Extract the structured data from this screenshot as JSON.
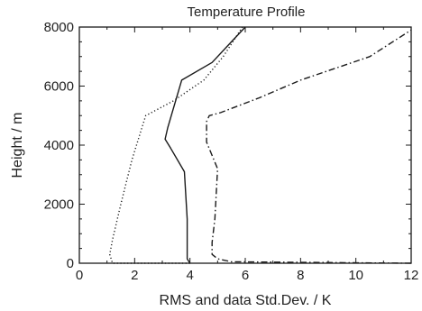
{
  "chart_data": {
    "type": "line",
    "title": "Temperature Profile",
    "xlabel": "RMS and data Std.Dev. / K",
    "ylabel": "Height / m",
    "xlim": [
      0,
      12
    ],
    "ylim": [
      0,
      8000
    ],
    "x_ticks": [
      0,
      2,
      4,
      6,
      8,
      10,
      12
    ],
    "y_ticks": [
      0,
      2000,
      4000,
      6000,
      8000
    ],
    "grid": false,
    "legend": "none",
    "series": [
      {
        "style": "solid",
        "color": "#1a1a1a",
        "x": [
          4.0,
          3.9,
          3.9,
          3.9,
          3.8,
          3.3,
          3.1,
          3.2,
          3.7,
          4.8,
          5.4,
          6.0
        ],
        "y": [
          0,
          150,
          500,
          1500,
          3100,
          3900,
          4200,
          4600,
          6200,
          6800,
          7400,
          8000
        ]
      },
      {
        "style": "dotted",
        "color": "#1a1a1a",
        "x": [
          4.0,
          1.2,
          1.1,
          1.2,
          1.5,
          1.9,
          2.3,
          2.4,
          3.4,
          4.5,
          5.2,
          5.9
        ],
        "y": [
          0,
          0,
          300,
          800,
          2000,
          3500,
          4700,
          5000,
          5500,
          6200,
          7000,
          8000
        ]
      },
      {
        "style": "dashdot",
        "color": "#1a1a1a",
        "x": [
          12.0,
          5.5,
          5.0,
          4.8,
          4.8,
          4.9,
          5.0,
          4.6,
          4.6,
          4.7,
          5.1,
          6.5,
          8.0,
          10.5,
          12.0
        ],
        "y": [
          0,
          50,
          150,
          300,
          700,
          1500,
          3200,
          4100,
          4800,
          5000,
          5100,
          5600,
          6200,
          7000,
          7900
        ]
      }
    ]
  }
}
